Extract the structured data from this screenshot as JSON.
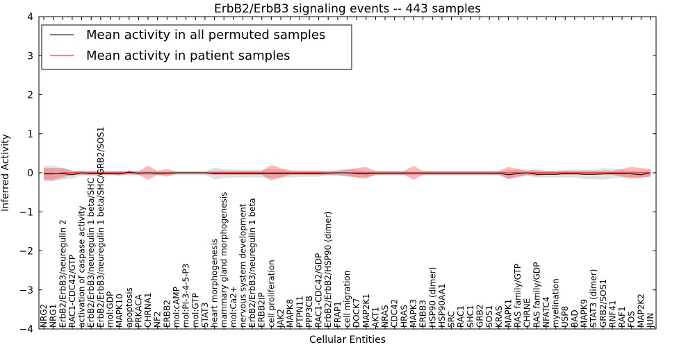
{
  "chart_data": {
    "type": "line",
    "title": "ErbB2/ErbB3 signaling events -- 443 samples",
    "xlabel": "Cellular Entities",
    "ylabel": "Inferred Activity",
    "ylim": [
      -4,
      4
    ],
    "yticks": [
      -4,
      -3,
      -2,
      -1,
      0,
      1,
      2,
      3,
      4
    ],
    "ytick_labels": [
      "−4",
      "−3",
      "−2",
      "−1",
      "0",
      "1",
      "2",
      "3",
      "4"
    ],
    "grid": false,
    "legend_position": "top-left",
    "categories": [
      "NRG2",
      "NRG1",
      "ErbB2/ErbB3/neuregulin 2",
      "RAC1-CDC42/GTP",
      "activation of caspase activity",
      "ErbB2/ErbB3/neuregulin 1 beta/SHC",
      "ErbB2/ErbB3/neuregulin 1 beta/SHC/GRB2/SOS1",
      "mol:GDP",
      "MAPK10",
      "apoptosis",
      "PRKACA",
      "CHRNA1",
      "NF2",
      "ERBB2",
      "mol:cAMP",
      "mol:PI-3-4-5-P3",
      "mol:GTP",
      "STAT3",
      "heart morphogenesis",
      "mammary gland morphogenesis",
      "mol:Ca2+",
      "nervous system development",
      "ErbB2/ErbB3/neuregulin 1 beta",
      "ERBB2IP",
      "cell proliferation",
      "JAK2",
      "MAPK8",
      "PTPN11",
      "PPP3CB",
      "RAC1-CDC42/GDP",
      "ErbB2/ErbB2/HSP90 (dimer)",
      "FRAP1",
      "cell migration",
      "DOCK7",
      "MAP2K1",
      "AKT1",
      "NRAS",
      "CDC42",
      "HRAS",
      "MAPK3",
      "ERBB3",
      "HSP90 (dimer)",
      "HSP90AA1",
      "SRC",
      "RAC1",
      "SHC1",
      "GRB2",
      "SOS1",
      "KRAS",
      "MAPK1",
      "RAS family/GTP",
      "CHRNE",
      "RAS family/GDP",
      "NFATC4",
      "myelination",
      "USP8",
      "BAD",
      "MAPK9",
      "STAT3 (dimer)",
      "GRB2/SOS1",
      "RNF41",
      "RAF1",
      "FOS",
      "MAP2K2",
      "JUN"
    ],
    "series": [
      {
        "name": "Mean activity in all permuted samples",
        "color": "#000000",
        "values": [
          -0.02,
          -0.02,
          -0.02,
          -0.05,
          0.0,
          -0.02,
          -0.02,
          -0.02,
          -0.03,
          0.02,
          -0.01,
          0.0,
          -0.01,
          -0.01,
          0.0,
          0.0,
          0.0,
          0.0,
          -0.02,
          -0.02,
          -0.02,
          -0.02,
          -0.02,
          -0.02,
          -0.02,
          -0.02,
          -0.02,
          -0.02,
          -0.02,
          -0.02,
          -0.01,
          0.0,
          0.0,
          -0.02,
          -0.03,
          -0.01,
          -0.01,
          -0.01,
          -0.01,
          -0.01,
          -0.01,
          -0.01,
          -0.01,
          -0.01,
          -0.01,
          -0.01,
          -0.01,
          -0.01,
          -0.01,
          -0.05,
          -0.02,
          0.0,
          -0.04,
          -0.04,
          -0.04,
          -0.02,
          -0.02,
          -0.04,
          -0.04,
          -0.03,
          -0.02,
          -0.02,
          -0.03,
          -0.05,
          0.0
        ],
        "band": [
          0.2,
          0.2,
          0.15,
          0.1,
          0.06,
          0.06,
          0.05,
          0.05,
          0.06,
          0.05,
          0.05,
          0.05,
          0.05,
          0.05,
          0.05,
          0.05,
          0.05,
          0.05,
          0.15,
          0.12,
          0.1,
          0.1,
          0.1,
          0.1,
          0.12,
          0.1,
          0.1,
          0.08,
          0.08,
          0.08,
          0.05,
          0.08,
          0.1,
          0.1,
          0.08,
          0.05,
          0.05,
          0.05,
          0.05,
          0.05,
          0.05,
          0.05,
          0.05,
          0.05,
          0.05,
          0.05,
          0.05,
          0.05,
          0.05,
          0.12,
          0.1,
          0.08,
          0.08,
          0.08,
          0.08,
          0.1,
          0.1,
          0.12,
          0.12,
          0.15,
          0.12,
          0.1,
          0.08,
          0.1,
          0.08
        ]
      },
      {
        "name": "Mean activity in patient samples",
        "color": "#ff0000",
        "values": [
          -0.03,
          -0.03,
          0.0,
          0.0,
          0.0,
          0.0,
          0.0,
          0.0,
          0.0,
          0.0,
          0.0,
          0.0,
          0.0,
          0.0,
          0.0,
          0.0,
          0.0,
          0.0,
          0.0,
          0.0,
          0.0,
          0.0,
          0.0,
          0.0,
          0.0,
          0.0,
          0.0,
          0.0,
          0.0,
          0.0,
          0.0,
          0.0,
          0.0,
          0.0,
          0.0,
          0.0,
          0.0,
          0.0,
          0.0,
          0.0,
          0.0,
          0.0,
          0.0,
          0.0,
          0.0,
          0.0,
          0.0,
          0.0,
          0.0,
          0.0,
          0.0,
          0.0,
          0.0,
          0.0,
          0.0,
          0.0,
          0.0,
          0.0,
          0.0,
          0.0,
          0.0,
          0.0,
          0.0,
          0.0,
          0.0
        ],
        "band": [
          0.15,
          0.15,
          0.12,
          0.05,
          0.05,
          0.05,
          0.05,
          0.05,
          0.05,
          0.05,
          0.05,
          0.18,
          0.05,
          0.1,
          0.03,
          0.03,
          0.03,
          0.03,
          0.05,
          0.05,
          0.05,
          0.05,
          0.05,
          0.05,
          0.2,
          0.12,
          0.05,
          0.05,
          0.05,
          0.05,
          0.05,
          0.05,
          0.08,
          0.12,
          0.15,
          0.05,
          0.05,
          0.05,
          0.05,
          0.18,
          0.05,
          0.05,
          0.05,
          0.05,
          0.05,
          0.05,
          0.05,
          0.05,
          0.05,
          0.15,
          0.1,
          0.05,
          0.08,
          0.05,
          0.05,
          0.05,
          0.05,
          0.05,
          0.05,
          0.05,
          0.05,
          0.1,
          0.15,
          0.12,
          0.1
        ]
      }
    ]
  }
}
